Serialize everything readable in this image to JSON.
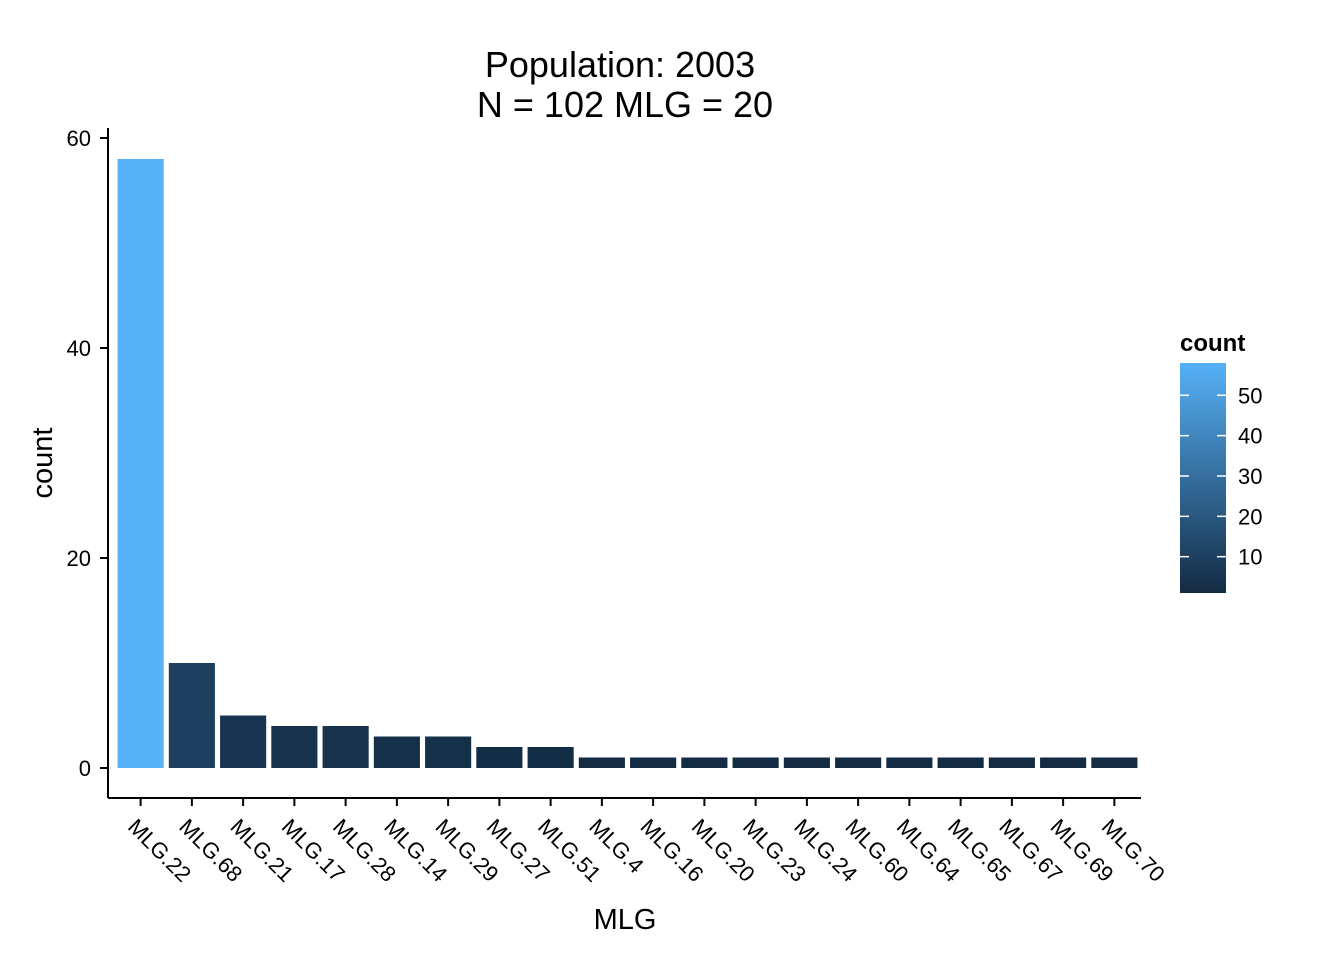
{
  "chart_data": {
    "type": "bar",
    "title": "Population: 2003",
    "subtitle": "N = 102 MLG = 20",
    "xlabel": "MLG",
    "ylabel": "count",
    "categories": [
      "MLG.22",
      "MLG.68",
      "MLG.21",
      "MLG.17",
      "MLG.28",
      "MLG.14",
      "MLG.29",
      "MLG.27",
      "MLG.51",
      "MLG.4",
      "MLG.16",
      "MLG.20",
      "MLG.23",
      "MLG.24",
      "MLG.60",
      "MLG.64",
      "MLG.65",
      "MLG.67",
      "MLG.69",
      "MLG.70"
    ],
    "values": [
      58,
      10,
      5,
      4,
      4,
      3,
      3,
      2,
      2,
      1,
      1,
      1,
      1,
      1,
      1,
      1,
      1,
      1,
      1,
      1
    ],
    "ylim": [
      0,
      60
    ],
    "yticks": [
      0,
      20,
      40,
      60
    ],
    "grid": false,
    "legend": {
      "title": "count",
      "placement": "right",
      "ticks": [
        10,
        20,
        30,
        40,
        50
      ],
      "range": [
        1,
        58
      ],
      "low_color": "#132B43",
      "high_color": "#56B1F7"
    }
  }
}
